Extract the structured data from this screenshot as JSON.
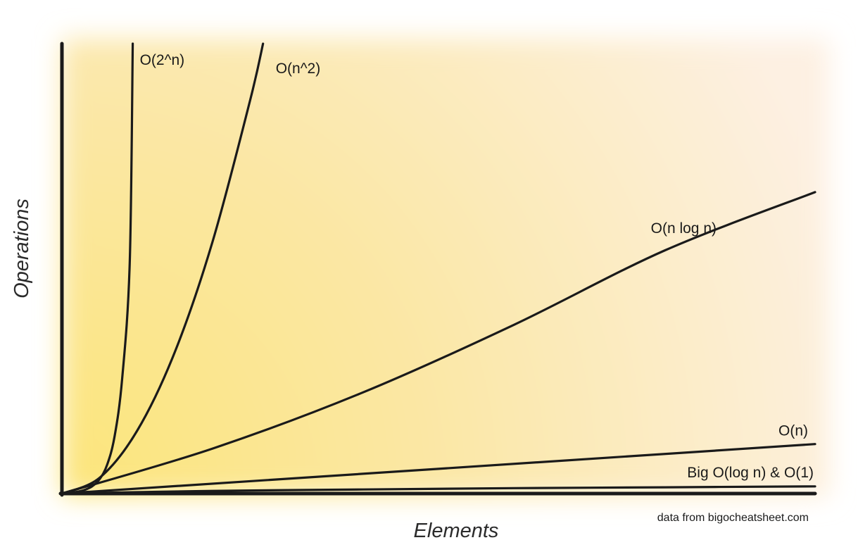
{
  "chart_data": {
    "type": "line",
    "title": "",
    "xlabel": "Elements",
    "ylabel": "Operations",
    "xlim": [
      0,
      100
    ],
    "ylim": [
      0,
      1000
    ],
    "grid": false,
    "legend": "none",
    "source_note": "data from bigocheatsheet.com",
    "series": [
      {
        "name": "O(2^n)",
        "curve": "exponential",
        "x": [
          0,
          1,
          2,
          3,
          4,
          5,
          6,
          7,
          8,
          9,
          9.4
        ],
        "y": [
          0,
          2,
          4,
          8,
          16,
          32,
          64,
          128,
          256,
          512,
          1000
        ]
      },
      {
        "name": "O(n^2)",
        "curve": "quadratic",
        "x": [
          0,
          5,
          10,
          15,
          20,
          25,
          26.7
        ],
        "y": [
          0,
          35,
          140,
          315,
          560,
          875,
          1000
        ]
      },
      {
        "name": "O(n log n)",
        "curve": "linearithmic",
        "x": [
          0,
          20,
          40,
          60,
          80,
          100
        ],
        "y": [
          0,
          100,
          225,
          375,
          540,
          670
        ]
      },
      {
        "name": "O(n)",
        "curve": "linear",
        "x": [
          0,
          100
        ],
        "y": [
          0,
          110
        ]
      },
      {
        "name": "Big O(log n) & O(1)",
        "curve": "logarithmic",
        "x": [
          0,
          20,
          40,
          60,
          80,
          100
        ],
        "y": [
          0,
          6,
          9,
          12,
          14,
          16
        ]
      }
    ]
  }
}
